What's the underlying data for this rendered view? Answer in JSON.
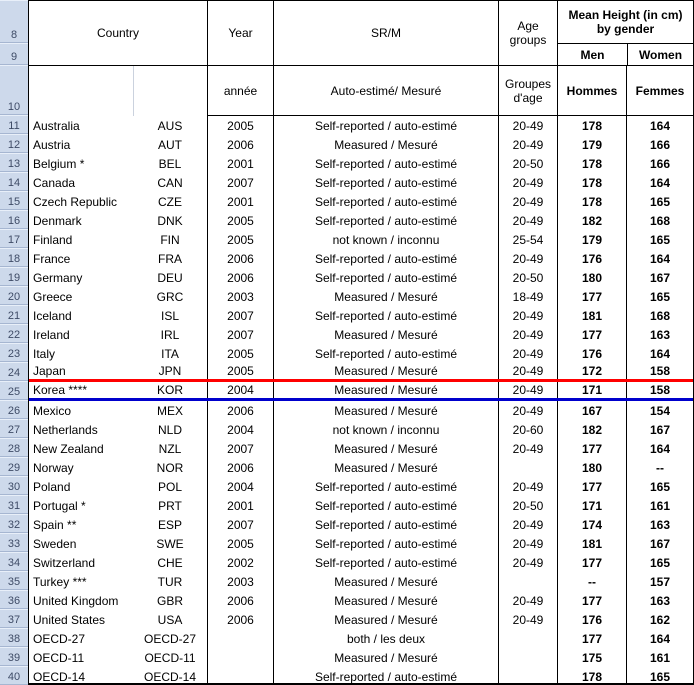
{
  "table": {
    "gutter": {
      "header_rows": [
        "8",
        "9",
        "10"
      ]
    },
    "header": {
      "country": "Country",
      "year": "Year",
      "srm": "SR/M",
      "age_groups": "Age groups",
      "mean_height": "Mean Height (in cm) by gender",
      "men": "Men",
      "women": "Women",
      "country_fr": "",
      "year_fr": "année",
      "srm_fr": "Auto-estimé/ Mesuré",
      "age_groups_fr": "Groupes d'age",
      "men_fr": "Hommes",
      "women_fr": "Femmes"
    },
    "rows": [
      {
        "num": "11",
        "country": "Australia",
        "code": "AUS",
        "year": "2005",
        "srm": "Self-reported / auto-estimé",
        "age": "20-49",
        "men": "178",
        "women": "164",
        "line": ""
      },
      {
        "num": "12",
        "country": "Austria",
        "code": "AUT",
        "year": "2006",
        "srm": "Measured / Mesuré",
        "age": "20-49",
        "men": "179",
        "women": "166",
        "line": ""
      },
      {
        "num": "13",
        "country": "Belgium *",
        "code": "BEL",
        "year": "2001",
        "srm": "Self-reported / auto-estimé",
        "age": "20-50",
        "men": "178",
        "women": "166",
        "line": ""
      },
      {
        "num": "14",
        "country": "Canada",
        "code": "CAN",
        "year": "2007",
        "srm": "Self-reported / auto-estimé",
        "age": "20-49",
        "men": "178",
        "women": "164",
        "line": ""
      },
      {
        "num": "15",
        "country": "Czech Republic",
        "code": "CZE",
        "year": "2001",
        "srm": "Self-reported / auto-estimé",
        "age": "20-49",
        "men": "178",
        "women": "165",
        "line": ""
      },
      {
        "num": "16",
        "country": "Denmark",
        "code": "DNK",
        "year": "2005",
        "srm": "Self-reported / auto-estimé",
        "age": "20-49",
        "men": "182",
        "women": "168",
        "line": ""
      },
      {
        "num": "17",
        "country": "Finland",
        "code": "FIN",
        "year": "2005",
        "srm": "not known / inconnu",
        "age": "25-54",
        "men": "179",
        "women": "165",
        "line": ""
      },
      {
        "num": "18",
        "country": "France",
        "code": "FRA",
        "year": "2006",
        "srm": "Self-reported / auto-estimé",
        "age": "20-49",
        "men": "176",
        "women": "164",
        "line": ""
      },
      {
        "num": "19",
        "country": "Germany",
        "code": "DEU",
        "year": "2006",
        "srm": "Self-reported / auto-estimé",
        "age": "20-50",
        "men": "180",
        "women": "167",
        "line": ""
      },
      {
        "num": "20",
        "country": "Greece",
        "code": "GRC",
        "year": "2003",
        "srm": "Measured / Mesuré",
        "age": "18-49",
        "men": "177",
        "women": "165",
        "line": ""
      },
      {
        "num": "21",
        "country": "Iceland",
        "code": "ISL",
        "year": "2007",
        "srm": "Self-reported / auto-estimé",
        "age": "20-49",
        "men": "181",
        "women": "168",
        "line": ""
      },
      {
        "num": "22",
        "country": "Ireland",
        "code": "IRL",
        "year": "2007",
        "srm": "Measured / Mesuré",
        "age": "20-49",
        "men": "177",
        "women": "163",
        "line": ""
      },
      {
        "num": "23",
        "country": "Italy",
        "code": "ITA",
        "year": "2005",
        "srm": "Self-reported / auto-estimé",
        "age": "20-49",
        "men": "176",
        "women": "164",
        "line": ""
      },
      {
        "num": "24",
        "country": "Japan",
        "code": "JPN",
        "year": "2005",
        "srm": "Measured / Mesuré",
        "age": "20-49",
        "men": "172",
        "women": "158",
        "line": "red"
      },
      {
        "num": "25",
        "country": "Korea ****",
        "code": "KOR",
        "year": "2004",
        "srm": "Measured / Mesuré",
        "age": "20-49",
        "men": "171",
        "women": "158",
        "line": "blue"
      },
      {
        "num": "26",
        "country": "Mexico",
        "code": "MEX",
        "year": "2006",
        "srm": "Measured / Mesuré",
        "age": "20-49",
        "men": "167",
        "women": "154",
        "line": ""
      },
      {
        "num": "27",
        "country": "Netherlands",
        "code": "NLD",
        "year": "2004",
        "srm": "not known / inconnu",
        "age": "20-60",
        "men": "182",
        "women": "167",
        "line": ""
      },
      {
        "num": "28",
        "country": "New Zealand",
        "code": "NZL",
        "year": "2007",
        "srm": "Measured / Mesuré",
        "age": "20-49",
        "men": "177",
        "women": "164",
        "line": ""
      },
      {
        "num": "29",
        "country": "Norway",
        "code": "NOR",
        "year": "2006",
        "srm": "Measured / Mesuré",
        "age": "",
        "men": "180",
        "women": "--",
        "line": ""
      },
      {
        "num": "30",
        "country": "Poland",
        "code": "POL",
        "year": "2004",
        "srm": "Self-reported / auto-estimé",
        "age": "20-49",
        "men": "177",
        "women": "165",
        "line": ""
      },
      {
        "num": "31",
        "country": "Portugal *",
        "code": "PRT",
        "year": "2001",
        "srm": "Self-reported / auto-estimé",
        "age": "20-50",
        "men": "171",
        "women": "161",
        "line": ""
      },
      {
        "num": "32",
        "country": "Spain **",
        "code": "ESP",
        "year": "2007",
        "srm": "Self-reported / auto-estimé",
        "age": "20-49",
        "men": "174",
        "women": "163",
        "line": ""
      },
      {
        "num": "33",
        "country": "Sweden",
        "code": "SWE",
        "year": "2005",
        "srm": "Self-reported / auto-estimé",
        "age": "20-49",
        "men": "181",
        "women": "167",
        "line": ""
      },
      {
        "num": "34",
        "country": "Switzerland",
        "code": "CHE",
        "year": "2002",
        "srm": "Self-reported / auto-estimé",
        "age": "20-49",
        "men": "177",
        "women": "165",
        "line": ""
      },
      {
        "num": "35",
        "country": "Turkey ***",
        "code": "TUR",
        "year": "2003",
        "srm": "Measured / Mesuré",
        "age": "",
        "men": "--",
        "women": "157",
        "line": ""
      },
      {
        "num": "36",
        "country": "United Kingdom",
        "code": "GBR",
        "year": "2006",
        "srm": "Measured / Mesuré",
        "age": "20-49",
        "men": "177",
        "women": "163",
        "line": ""
      },
      {
        "num": "37",
        "country": "United States",
        "code": "USA",
        "year": "2006",
        "srm": "Measured / Mesuré",
        "age": "20-49",
        "men": "176",
        "women": "162",
        "line": ""
      },
      {
        "num": "38",
        "country": "OECD-27",
        "code": "OECD-27",
        "year": "",
        "srm": "both / les deux",
        "age": "",
        "men": "177",
        "women": "164",
        "line": ""
      },
      {
        "num": "39",
        "country": "OECD-11",
        "code": "OECD-11",
        "year": "",
        "srm": "Measured / Mesuré",
        "age": "",
        "men": "175",
        "women": "161",
        "line": ""
      },
      {
        "num": "40",
        "country": "OECD-14",
        "code": "OECD-14",
        "year": "",
        "srm": "Self-reported / auto-estimé",
        "age": "",
        "men": "178",
        "women": "165",
        "line": ""
      }
    ]
  },
  "colors": {
    "red_marker_line": "#FF0000",
    "blue_marker_line": "#0000CC",
    "gutter_background": "#CDD9EB",
    "border_black": "#000000"
  }
}
